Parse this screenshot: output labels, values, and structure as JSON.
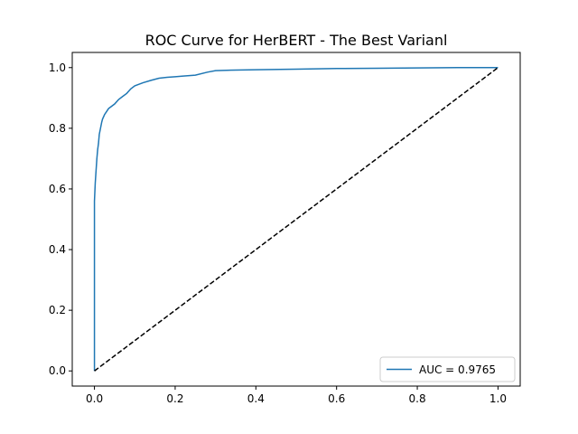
{
  "chart_data": {
    "type": "line",
    "title": "ROC Curve for HerBERT - The Best Varianl",
    "xlabel": "",
    "ylabel": "",
    "xlim": [
      -0.055,
      1.055
    ],
    "ylim": [
      -0.05,
      1.05
    ],
    "xticks": [
      0.0,
      0.2,
      0.4,
      0.6,
      0.8,
      1.0
    ],
    "yticks": [
      0.0,
      0.2,
      0.4,
      0.6,
      0.8,
      1.0
    ],
    "tick_labels_x": [
      "0.0",
      "0.2",
      "0.4",
      "0.6",
      "0.8",
      "1.0"
    ],
    "tick_labels_y": [
      "0.0",
      "0.2",
      "0.4",
      "0.6",
      "0.8",
      "1.0"
    ],
    "grid": false,
    "legend": {
      "location": "lower right",
      "entries": [
        "AUC = 0.9765"
      ]
    },
    "series": [
      {
        "name": "AUC = 0.9765",
        "color": "#1f77b4",
        "style": "solid",
        "x": [
          0.0,
          0.0,
          0.002,
          0.004,
          0.006,
          0.008,
          0.01,
          0.012,
          0.015,
          0.018,
          0.02,
          0.025,
          0.03,
          0.035,
          0.04,
          0.05,
          0.06,
          0.07,
          0.08,
          0.09,
          0.1,
          0.12,
          0.14,
          0.16,
          0.18,
          0.2,
          0.22,
          0.25,
          0.28,
          0.3,
          0.35,
          0.4,
          0.5,
          0.6,
          0.7,
          0.8,
          0.9,
          1.0
        ],
        "y": [
          0.0,
          0.56,
          0.62,
          0.66,
          0.7,
          0.73,
          0.75,
          0.78,
          0.8,
          0.82,
          0.83,
          0.845,
          0.855,
          0.865,
          0.87,
          0.88,
          0.895,
          0.905,
          0.915,
          0.93,
          0.94,
          0.95,
          0.958,
          0.965,
          0.968,
          0.97,
          0.972,
          0.975,
          0.985,
          0.99,
          0.992,
          0.993,
          0.995,
          0.997,
          0.998,
          0.999,
          1.0,
          1.0
        ]
      },
      {
        "name": "",
        "color": "#000000",
        "style": "dashed",
        "x": [
          0.0,
          1.0
        ],
        "y": [
          0.0,
          1.0
        ]
      }
    ]
  }
}
